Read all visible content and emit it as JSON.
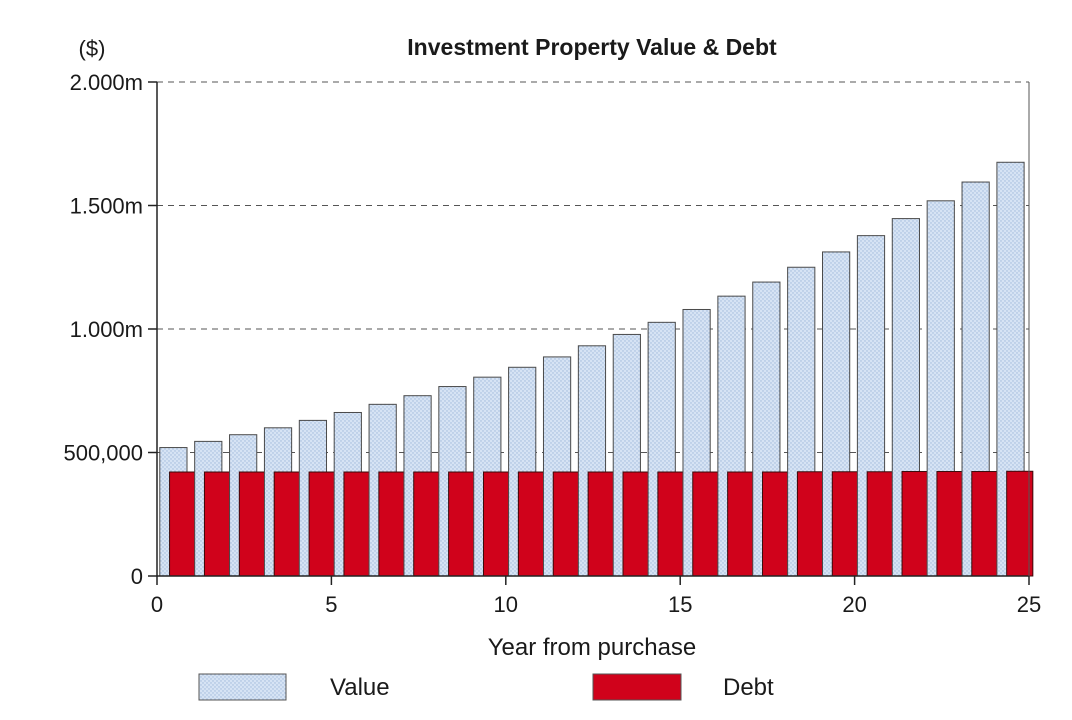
{
  "chart_data": {
    "type": "bar",
    "title": "Investment Property Value & Debt",
    "y_unit": "($)",
    "xlabel": "Year from purchase",
    "ylabel": "",
    "xlim": [
      0,
      25
    ],
    "ylim": [
      0,
      2000000
    ],
    "x_ticks": [
      {
        "value": 0,
        "label": "0"
      },
      {
        "value": 5,
        "label": "5"
      },
      {
        "value": 10,
        "label": "10"
      },
      {
        "value": 15,
        "label": "15"
      },
      {
        "value": 20,
        "label": "20"
      },
      {
        "value": 25,
        "label": "25"
      }
    ],
    "y_ticks": [
      {
        "value": 0,
        "label": "0"
      },
      {
        "value": 500000,
        "label": "500,000"
      },
      {
        "value": 1000000,
        "label": "1.000m"
      },
      {
        "value": 1500000,
        "label": "1.500m"
      },
      {
        "value": 2000000,
        "label": "2.000m"
      }
    ],
    "grid": "horizontal dashed",
    "legend_position": "bottom",
    "categories": [
      1,
      2,
      3,
      4,
      5,
      6,
      7,
      8,
      9,
      10,
      11,
      12,
      13,
      14,
      15,
      16,
      17,
      18,
      19,
      20,
      21,
      22,
      23,
      24,
      25
    ],
    "series": [
      {
        "name": "Value",
        "color": "#c9daf0",
        "values": [
          520000,
          545000,
          572000,
          600000,
          630000,
          662000,
          695000,
          730000,
          767000,
          805000,
          845000,
          887000,
          932000,
          978000,
          1027000,
          1079000,
          1133000,
          1190000,
          1250000,
          1312000,
          1378000,
          1447000,
          1519000,
          1595000,
          1675000
        ]
      },
      {
        "name": "Debt",
        "color": "#d0021b",
        "values": [
          421000,
          421000,
          421000,
          421000,
          421000,
          421000,
          421000,
          421000,
          421000,
          421000,
          421000,
          421000,
          421000,
          421000,
          421000,
          421000,
          421000,
          421000,
          422000,
          422000,
          422000,
          423000,
          423000,
          423000,
          424000
        ]
      }
    ]
  }
}
